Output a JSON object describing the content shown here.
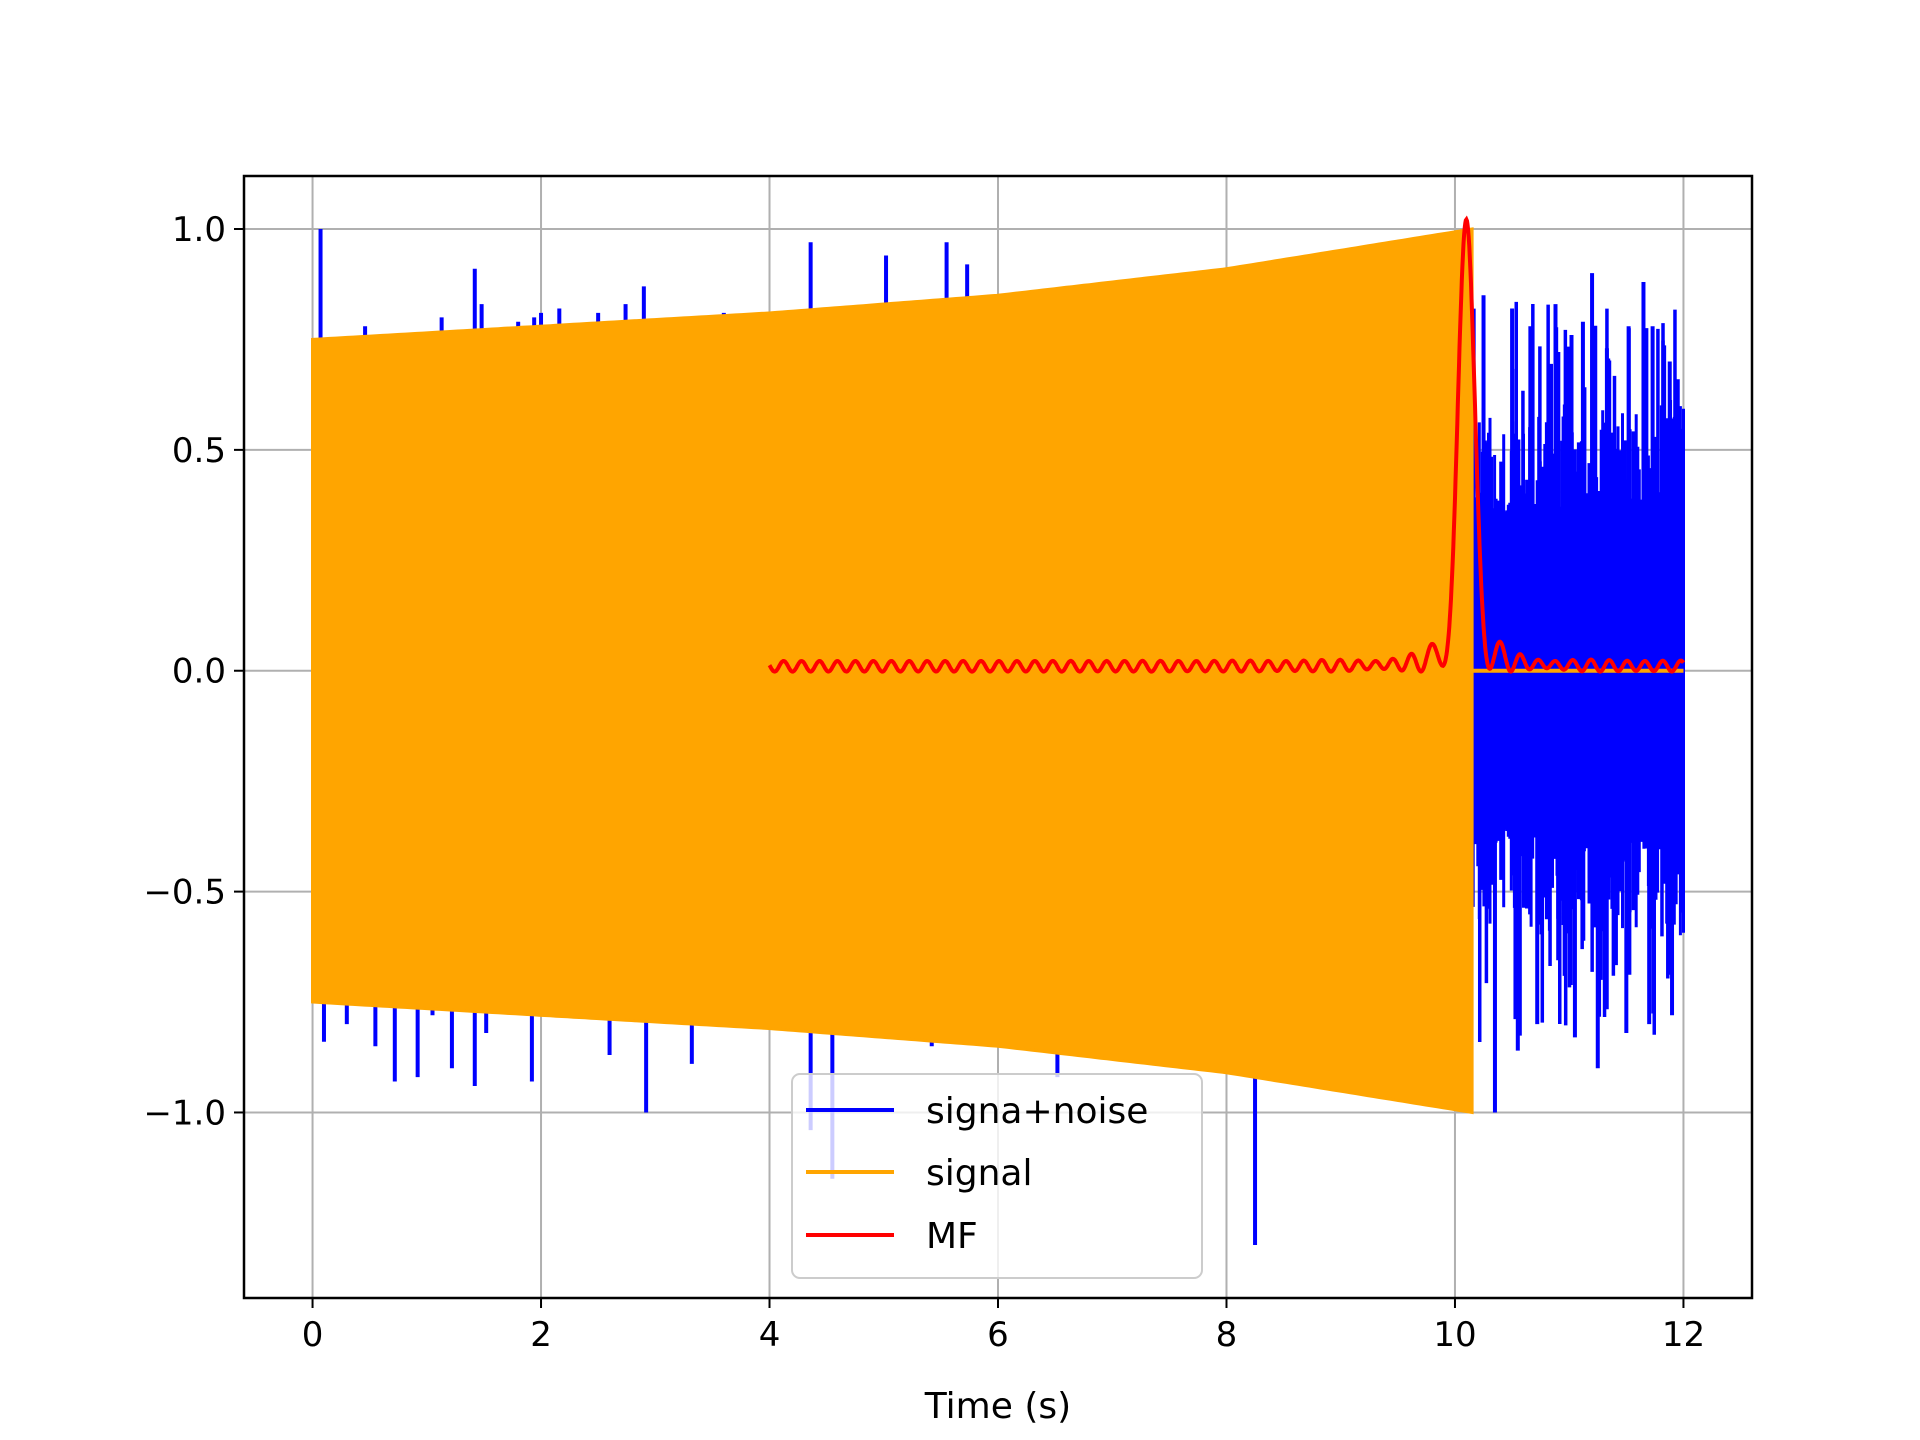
{
  "chart_data": {
    "type": "line",
    "title": "",
    "xlabel": "Time (s)",
    "ylabel": "",
    "xlim": [
      -0.6,
      12.6
    ],
    "ylim": [
      -1.42,
      1.12
    ],
    "xticks": [
      0,
      2,
      4,
      6,
      8,
      10,
      12
    ],
    "xtick_labels": [
      "0",
      "2",
      "4",
      "6",
      "8",
      "10",
      "12"
    ],
    "yticks": [
      1.0,
      0.5,
      0.0,
      -0.5,
      -1.0
    ],
    "ytick_labels": [
      "1.0",
      "0.5",
      "0.0",
      "−0.5",
      "−1.0"
    ],
    "grid": true,
    "legend_position": "lower-center",
    "series": [
      {
        "name": "signa+noise",
        "color": "#0000ff",
        "x_range": [
          0,
          12
        ],
        "noise_band": 0.6,
        "positive_spikes": [
          [
            0.07,
            1.0
          ],
          [
            0.16,
            0.75
          ],
          [
            0.46,
            0.78
          ],
          [
            1.13,
            0.8
          ],
          [
            1.42,
            0.91
          ],
          [
            1.48,
            0.83
          ],
          [
            1.8,
            0.79
          ],
          [
            1.88,
            0.78
          ],
          [
            1.94,
            0.8
          ],
          [
            2.0,
            0.81
          ],
          [
            2.16,
            0.82
          ],
          [
            2.5,
            0.81
          ],
          [
            2.74,
            0.83
          ],
          [
            2.9,
            0.87
          ],
          [
            3.6,
            0.81
          ],
          [
            4.36,
            0.97
          ],
          [
            4.9,
            0.83
          ],
          [
            5.02,
            0.94
          ],
          [
            5.55,
            0.97
          ],
          [
            5.73,
            0.92
          ],
          [
            10.25,
            0.85
          ],
          [
            10.5,
            0.82
          ],
          [
            10.66,
            0.78
          ],
          [
            10.88,
            0.83
          ],
          [
            11.02,
            0.76
          ],
          [
            11.12,
            0.79
          ],
          [
            11.2,
            0.9
          ],
          [
            11.33,
            0.73
          ],
          [
            11.52,
            0.78
          ],
          [
            11.65,
            0.88
          ],
          [
            11.73,
            0.78
          ],
          [
            11.88,
            0.7
          ],
          [
            11.95,
            0.66
          ]
        ],
        "negative_spikes": [
          [
            0.1,
            -0.84
          ],
          [
            0.3,
            -0.8
          ],
          [
            0.55,
            -0.85
          ],
          [
            0.72,
            -0.93
          ],
          [
            0.92,
            -0.92
          ],
          [
            1.05,
            -0.78
          ],
          [
            1.22,
            -0.9
          ],
          [
            1.42,
            -0.94
          ],
          [
            1.52,
            -0.82
          ],
          [
            1.92,
            -0.93
          ],
          [
            2.6,
            -0.87
          ],
          [
            2.92,
            -1.0
          ],
          [
            3.32,
            -0.89
          ],
          [
            4.36,
            -1.04
          ],
          [
            4.55,
            -1.15
          ],
          [
            5.42,
            -0.85
          ],
          [
            6.52,
            -0.92
          ],
          [
            8.25,
            -1.3
          ],
          [
            10.12,
            -0.73
          ],
          [
            10.35,
            -1.0
          ],
          [
            10.55,
            -0.86
          ],
          [
            10.72,
            -0.8
          ],
          [
            11.05,
            -0.83
          ],
          [
            11.25,
            -0.9
          ],
          [
            11.5,
            -0.82
          ],
          [
            11.7,
            -0.8
          ],
          [
            11.9,
            -0.78
          ]
        ]
      },
      {
        "name": "signal",
        "color": "#ffa500",
        "x_range": [
          0,
          10.15
        ],
        "envelope": [
          [
            0,
            0.75
          ],
          [
            2,
            0.78
          ],
          [
            4,
            0.81
          ],
          [
            6,
            0.85
          ],
          [
            8,
            0.91
          ],
          [
            10.15,
            1.0
          ]
        ],
        "tail_value": 0.0,
        "tail_x": [
          10.15,
          12
        ]
      },
      {
        "name": "MF",
        "color": "#ff0000",
        "x_range": [
          4.0,
          12.0
        ],
        "peak": [
          10.1,
          1.0
        ],
        "baseline": 0.01
      }
    ]
  }
}
